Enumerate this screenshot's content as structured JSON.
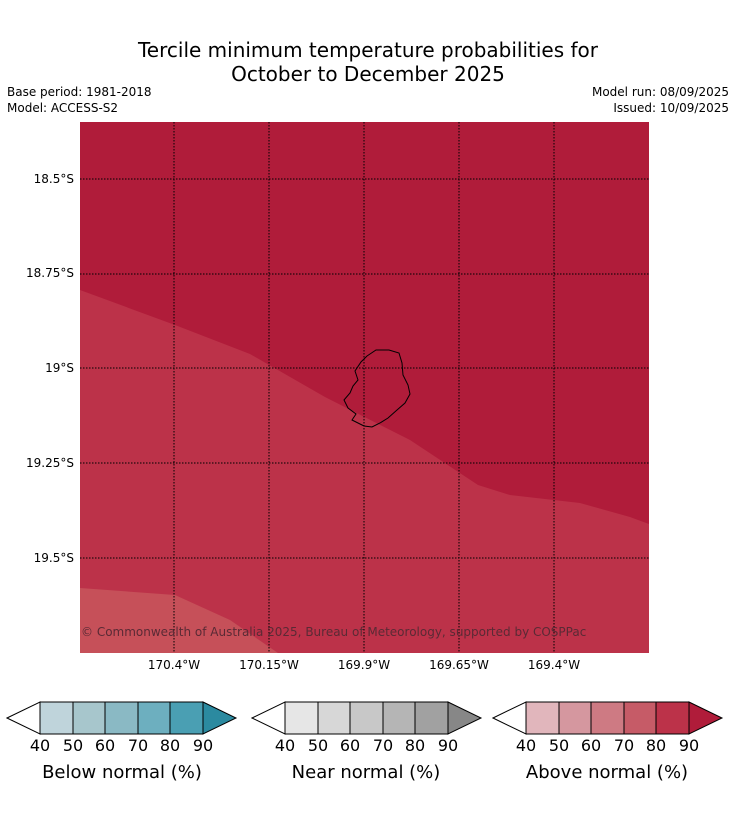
{
  "title_line1": "Tercile minimum temperature probabilities for",
  "title_line2": "October to December 2025",
  "meta": {
    "base_period": "Base period: 1981-2018",
    "model": "Model: ACCESS-S2",
    "model_run": "Model run: 08/09/2025",
    "issued": "Issued: 10/09/2025"
  },
  "map": {
    "lat_labels": [
      "18.5°S",
      "18.75°S",
      "19°S",
      "19.25°S",
      "19.5°S"
    ],
    "lon_labels": [
      "170.4°W",
      "170.15°W",
      "169.9°W",
      "169.65°W",
      "169.4°W"
    ],
    "copyright": "© Commonwealth of Australia 2025, Bureau of Meteorology, supported by COSPPac",
    "region_colors": {
      "above_90": "#b01c3a",
      "above_80": "#bc3249",
      "above_70": "#c65059"
    }
  },
  "colorbars": [
    {
      "label": "Below normal (%)",
      "ticks": [
        "40",
        "50",
        "60",
        "70",
        "80",
        "90"
      ],
      "colors": [
        "#bfd4db",
        "#a7c6cc",
        "#8ab9c4",
        "#6dafbf",
        "#4a9fb3",
        "#2b8aa0"
      ]
    },
    {
      "label": "Near normal (%)",
      "ticks": [
        "40",
        "50",
        "60",
        "70",
        "80",
        "90"
      ],
      "colors": [
        "#e6e6e6",
        "#d7d7d7",
        "#c8c8c8",
        "#b5b5b5",
        "#a1a1a1",
        "#878787"
      ]
    },
    {
      "label": "Above normal (%)",
      "ticks": [
        "40",
        "50",
        "60",
        "70",
        "80",
        "90"
      ],
      "colors": [
        "#e1b6bc",
        "#d5979f",
        "#ce7a83",
        "#c65b67",
        "#bc3249",
        "#b01c3a"
      ]
    }
  ]
}
